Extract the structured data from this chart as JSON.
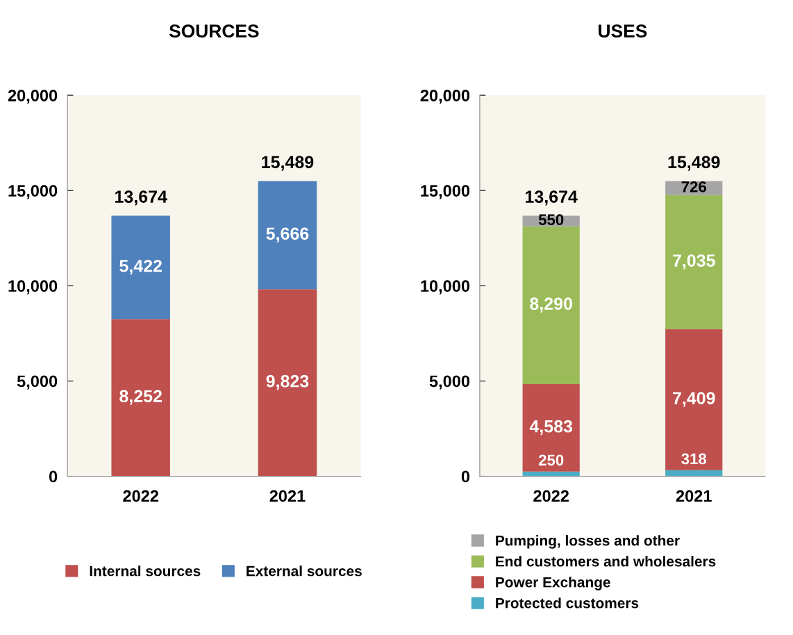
{
  "chart_data": [
    {
      "type": "bar",
      "title": "SOURCES",
      "categories": [
        "2022",
        "2021"
      ],
      "stacked": true,
      "totals": [
        "13,674",
        "15,489"
      ],
      "ylim": [
        0,
        20000
      ],
      "yticks": [
        {
          "value": 0,
          "label": "0"
        },
        {
          "value": 5000,
          "label": "5,000"
        },
        {
          "value": 10000,
          "label": "10,000"
        },
        {
          "value": 15000,
          "label": "15,000"
        },
        {
          "value": 20000,
          "label": "20,000"
        }
      ],
      "grid": false,
      "legend": "bottom",
      "series": [
        {
          "name": "Internal sources",
          "color": "#c0504d",
          "values": [
            8252,
            9823
          ],
          "value_labels": [
            "8,252",
            "9,823"
          ]
        },
        {
          "name": "External sources",
          "color": "#4f81bd",
          "values": [
            5422,
            5666
          ],
          "value_labels": [
            "5,422",
            "5,666"
          ]
        }
      ]
    },
    {
      "type": "bar",
      "title": "USES",
      "categories": [
        "2022",
        "2021"
      ],
      "stacked": true,
      "totals": [
        "13,674",
        "15,489"
      ],
      "ylim": [
        0,
        20000
      ],
      "yticks": [
        {
          "value": 0,
          "label": "0"
        },
        {
          "value": 5000,
          "label": "5,000"
        },
        {
          "value": 10000,
          "label": "10,000"
        },
        {
          "value": 15000,
          "label": "15,000"
        },
        {
          "value": 20000,
          "label": "20,000"
        }
      ],
      "grid": false,
      "legend": "bottom",
      "series": [
        {
          "name": "Protected customers",
          "color": "#4bacc6",
          "values": [
            250,
            318
          ],
          "value_labels": [
            "250",
            "318"
          ]
        },
        {
          "name": "Power Exchange",
          "color": "#c0504d",
          "values": [
            4583,
            7409
          ],
          "value_labels": [
            "4,583",
            "7,409"
          ]
        },
        {
          "name": "End customers and wholesalers",
          "color": "#9bbb59",
          "values": [
            8290,
            7035
          ],
          "value_labels": [
            "8,290",
            "7,035"
          ]
        },
        {
          "name": "Pumping, losses and other",
          "color": "#a5a5a5",
          "values": [
            550,
            726
          ],
          "value_labels": [
            "550",
            "726"
          ]
        }
      ]
    }
  ]
}
